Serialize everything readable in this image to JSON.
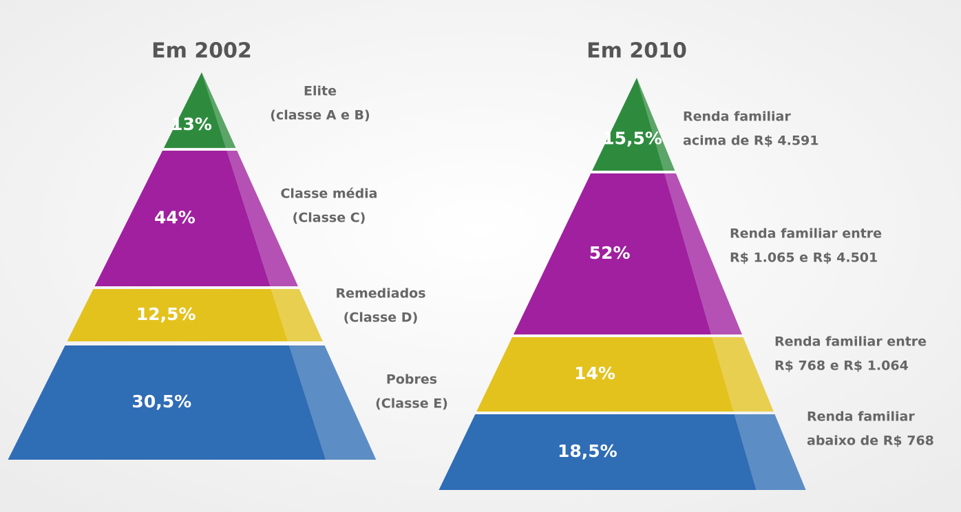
{
  "chart_data": [
    {
      "type": "pyramid",
      "title": "Em 2002",
      "categories": [
        [
          "Elite",
          "(classe A e B)"
        ],
        [
          "Classe média",
          "(Classe C)"
        ],
        [
          "Remediados",
          "(Classe D)"
        ],
        [
          "Pobres",
          "(Classe E)"
        ]
      ],
      "values": [
        13,
        44,
        12.5,
        30.5
      ],
      "value_labels": [
        "13%",
        "44%",
        "12,5%",
        "30,5%"
      ],
      "colors": [
        "#2e8b3e",
        "#a0209f",
        "#e3c21e",
        "#2f6db5"
      ]
    },
    {
      "type": "pyramid",
      "title": "Em 2010",
      "categories": [
        [
          "Renda familiar",
          "acima de R$ 4.591"
        ],
        [
          "Renda familiar entre",
          "R$ 1.065 e R$ 4.501"
        ],
        [
          "Renda familiar entre",
          "R$ 768 e R$ 1.064"
        ],
        [
          "Renda familiar",
          "abaixo de R$ 768"
        ]
      ],
      "values": [
        15.5,
        52,
        14,
        18.5
      ],
      "value_labels": [
        "15,5%",
        "52%",
        "14%",
        "18,5%"
      ],
      "colors": [
        "#2e8b3e",
        "#a0209f",
        "#e3c21e",
        "#2f6db5"
      ]
    }
  ]
}
